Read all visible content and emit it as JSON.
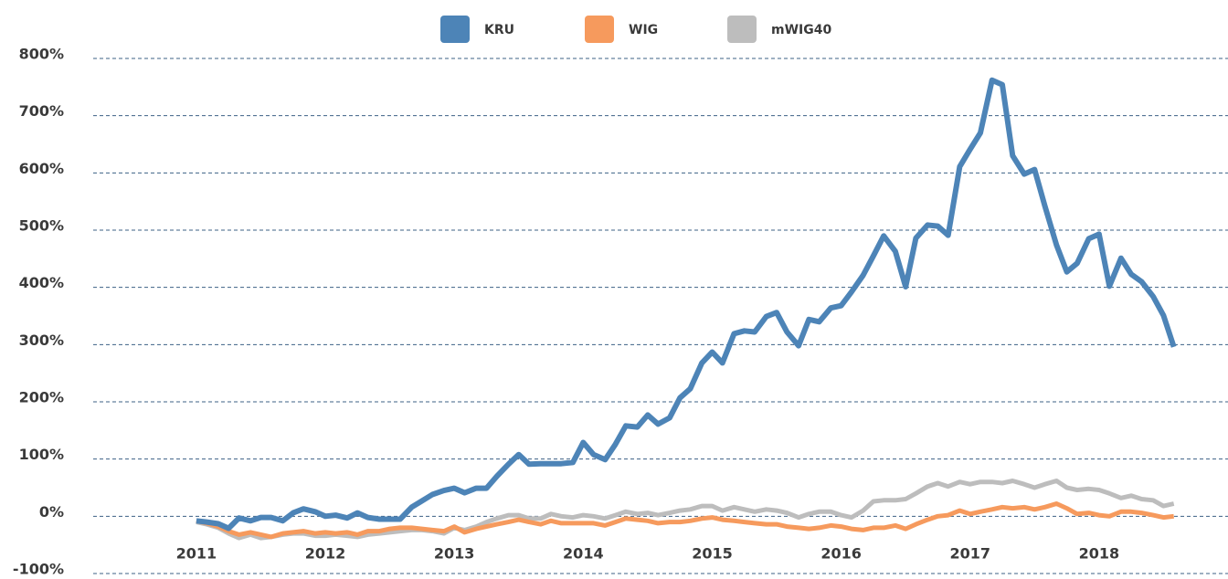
{
  "chart_data": {
    "type": "line",
    "x": [
      2011,
      2011.08,
      2011.17,
      2011.25,
      2011.33,
      2011.42,
      2011.5,
      2011.58,
      2011.67,
      2011.75,
      2011.83,
      2011.92,
      2012,
      2012.08,
      2012.17,
      2012.25,
      2012.33,
      2012.42,
      2012.5,
      2012.58,
      2012.67,
      2012.75,
      2012.83,
      2012.92,
      2013,
      2013.08,
      2013.17,
      2013.25,
      2013.33,
      2013.42,
      2013.5,
      2013.58,
      2013.67,
      2013.75,
      2013.83,
      2013.92,
      2014,
      2014.08,
      2014.17,
      2014.25,
      2014.33,
      2014.42,
      2014.5,
      2014.58,
      2014.67,
      2014.75,
      2014.83,
      2014.92,
      2015,
      2015.08,
      2015.17,
      2015.25,
      2015.33,
      2015.42,
      2015.5,
      2015.58,
      2015.67,
      2015.75,
      2015.83,
      2015.92,
      2016,
      2016.08,
      2016.17,
      2016.25,
      2016.33,
      2016.42,
      2016.5,
      2016.58,
      2016.67,
      2016.75,
      2016.83,
      2016.92,
      2017,
      2017.08,
      2017.17,
      2017.25,
      2017.33,
      2017.42,
      2017.5,
      2017.58,
      2017.67,
      2017.75,
      2017.83,
      2017.92,
      2018,
      2018.08,
      2018.17,
      2018.25,
      2018.33,
      2018.42,
      2018.5,
      2018.58
    ],
    "series": [
      {
        "name": "KRU",
        "color": "#4d84b7",
        "values": [
          -8,
          -10,
          -13,
          -21,
          -3,
          -8,
          -2,
          -2,
          -8,
          6,
          13,
          8,
          0,
          2,
          -3,
          6,
          -2,
          -5,
          -5,
          -5,
          16,
          27,
          38,
          45,
          49,
          41,
          49,
          49,
          70,
          91,
          108,
          91,
          92,
          92,
          92,
          94,
          129,
          108,
          99,
          126,
          158,
          156,
          177,
          161,
          172,
          207,
          223,
          268,
          287,
          268,
          319,
          324,
          322,
          349,
          356,
          322,
          298,
          344,
          340,
          364,
          368,
          392,
          421,
          455,
          490,
          463,
          401,
          486,
          509,
          507,
          491,
          611,
          641,
          670,
          762,
          754,
          630,
          598,
          606,
          542,
          474,
          427,
          442,
          485,
          493,
          402,
          451,
          423,
          410,
          384,
          351,
          296
        ]
      },
      {
        "name": "WIG",
        "color": "#f69a5d",
        "values": [
          -8,
          -12,
          -18,
          -26,
          -32,
          -28,
          -32,
          -36,
          -30,
          -28,
          -26,
          -30,
          -28,
          -30,
          -28,
          -32,
          -26,
          -26,
          -22,
          -20,
          -20,
          -22,
          -24,
          -26,
          -18,
          -28,
          -22,
          -18,
          -14,
          -10,
          -6,
          -10,
          -14,
          -8,
          -12,
          -12,
          -12,
          -12,
          -16,
          -10,
          -4,
          -6,
          -8,
          -12,
          -10,
          -10,
          -8,
          -4,
          -2,
          -6,
          -8,
          -10,
          -12,
          -14,
          -14,
          -18,
          -20,
          -22,
          -20,
          -16,
          -18,
          -22,
          -24,
          -20,
          -20,
          -16,
          -22,
          -14,
          -6,
          0,
          2,
          10,
          4,
          8,
          12,
          16,
          14,
          16,
          12,
          16,
          22,
          14,
          4,
          6,
          2,
          0,
          8,
          8,
          6,
          2,
          -2,
          0
        ]
      },
      {
        "name": "mWIG40",
        "color": "#bdbdbd",
        "values": [
          -10,
          -14,
          -20,
          -30,
          -38,
          -32,
          -38,
          -36,
          -32,
          -30,
          -30,
          -34,
          -34,
          -32,
          -34,
          -36,
          -32,
          -30,
          -28,
          -26,
          -24,
          -24,
          -26,
          -30,
          -20,
          -24,
          -18,
          -10,
          -4,
          2,
          2,
          -4,
          -4,
          4,
          0,
          -2,
          2,
          0,
          -4,
          2,
          8,
          4,
          6,
          2,
          6,
          10,
          12,
          18,
          18,
          10,
          16,
          12,
          8,
          12,
          10,
          6,
          -2,
          4,
          8,
          8,
          2,
          -2,
          10,
          26,
          28,
          28,
          30,
          40,
          52,
          58,
          52,
          60,
          56,
          60,
          60,
          58,
          62,
          56,
          50,
          56,
          62,
          50,
          46,
          48,
          46,
          40,
          32,
          36,
          30,
          28,
          18,
          22
        ]
      }
    ],
    "xlim": [
      2010.2,
      2019.0
    ],
    "xticks": [
      2011,
      2012,
      2013,
      2014,
      2015,
      2016,
      2017,
      2018
    ],
    "ylim": [
      -100,
      800
    ],
    "yticks": [
      {
        "value": -100,
        "label": "-100%"
      },
      {
        "value": 0,
        "label": "0%"
      },
      {
        "value": 100,
        "label": "100%"
      },
      {
        "value": 200,
        "label": "200%"
      },
      {
        "value": 300,
        "label": "300%"
      },
      {
        "value": 400,
        "label": "400%"
      },
      {
        "value": 500,
        "label": "500%"
      },
      {
        "value": 600,
        "label": "600%"
      },
      {
        "value": 700,
        "label": "700%"
      },
      {
        "value": 800,
        "label": "800%"
      }
    ],
    "grid": true,
    "legend": "top"
  }
}
